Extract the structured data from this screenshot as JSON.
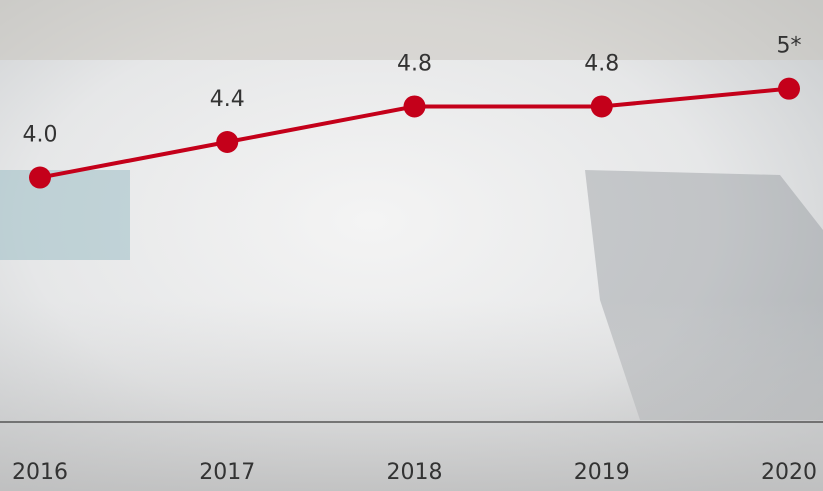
{
  "chart_data": {
    "type": "line",
    "categories": [
      "2016",
      "2017",
      "2018",
      "2019",
      "2020"
    ],
    "series": [
      {
        "color": "#c4001a",
        "values": [
          4.0,
          4.4,
          4.8,
          4.8,
          5
        ],
        "value_labels": [
          "4.0",
          "4.4",
          "4.8",
          "4.8",
          "5*"
        ]
      }
    ],
    "ylim": [
      1.25,
      5.3
    ]
  }
}
